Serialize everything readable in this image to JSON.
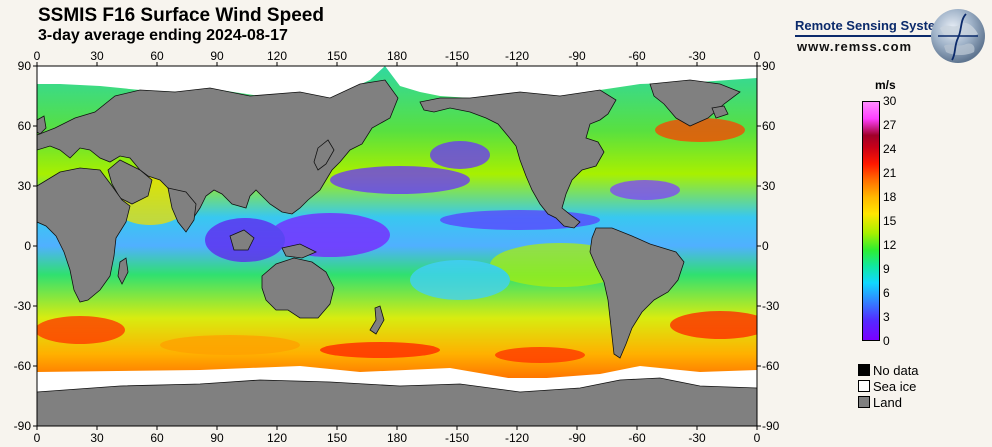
{
  "header": {
    "title": "SSMIS F16 Surface Wind Speed",
    "subtitle": "3-day average ending 2024-08-17"
  },
  "brand": {
    "name": "Remote Sensing Systems",
    "url": "www.remss.com",
    "logo": "globe-logo-icon"
  },
  "map": {
    "top_lon_labels": [
      "0",
      "30",
      "60",
      "90",
      "120",
      "150",
      "180",
      "-150",
      "-120",
      "-90",
      "-60",
      "-30",
      "0"
    ],
    "bottom_lon_labels": [
      "0",
      "30",
      "60",
      "90",
      "120",
      "150",
      "180",
      "-150",
      "-120",
      "-90",
      "-60",
      "-30",
      "0"
    ],
    "left_lat_labels": [
      "90",
      "60",
      "30",
      "0",
      "-30",
      "-60",
      "-90"
    ],
    "right_lat_labels": [
      "90",
      "60",
      "30",
      "0",
      "-30",
      "-60",
      "-90"
    ],
    "land_color": "#808080",
    "ice_color": "#ffffff"
  },
  "legend": {
    "unit": "m/s",
    "ticks": [
      "30",
      "27",
      "24",
      "21",
      "18",
      "15",
      "12",
      "9",
      "6",
      "3",
      "0"
    ],
    "colors": [
      "#7a00ff",
      "#2e8cff",
      "#10d8ff",
      "#30ee30",
      "#ffe600",
      "#ff7000",
      "#ff1800",
      "#a0002a",
      "#ff40ff"
    ],
    "keys": [
      {
        "label": "No data",
        "color": "#000000"
      },
      {
        "label": "Sea ice",
        "color": "#ffffff"
      },
      {
        "label": "Land",
        "color": "#808080"
      }
    ]
  }
}
